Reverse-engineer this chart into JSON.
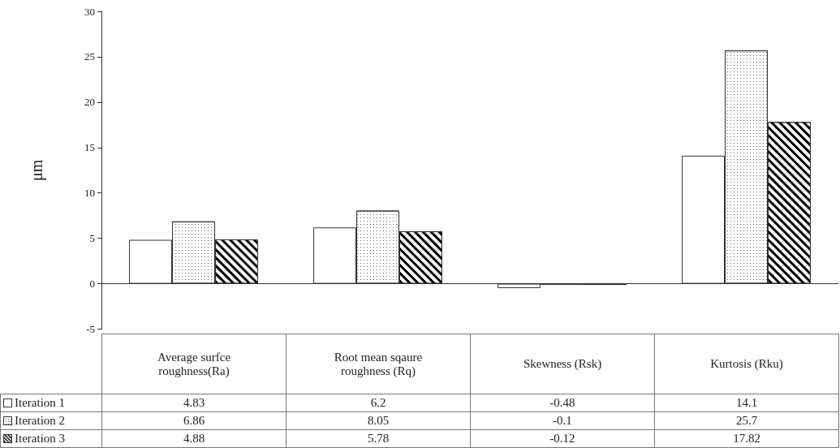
{
  "chart_data": {
    "type": "bar",
    "ylabel": "μm",
    "categories": [
      "Average surfce roughness(Ra)",
      "Root mean sqaure roughness (Rq)",
      "Skewness (Rsk)",
      "Kurtosis (Rku)"
    ],
    "series": [
      {
        "name": "Iteration 1",
        "color": "#ffffff",
        "values": [
          4.83,
          6.2,
          -0.48,
          14.1
        ]
      },
      {
        "name": "Iteration 2",
        "color": "#ffffff",
        "values": [
          6.86,
          8.05,
          -0.1,
          25.7
        ]
      },
      {
        "name": "Iteration 3",
        "color": "#ffffff",
        "values": [
          4.88,
          5.78,
          -0.12,
          17.82
        ]
      }
    ],
    "ylim": [
      -5,
      30
    ],
    "yticks": [
      -5,
      0,
      5,
      10,
      15,
      20,
      25,
      30
    ],
    "legend": "bottom left",
    "data_labels": true
  }
}
